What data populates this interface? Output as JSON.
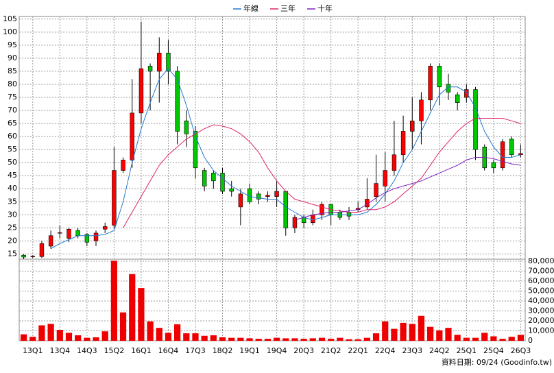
{
  "chart_data": {
    "type": "candlestick",
    "categories": [
      null,
      "13Q1",
      null,
      null,
      "13Q4",
      null,
      null,
      "14Q3",
      null,
      null,
      "15Q2",
      null,
      null,
      "16Q1",
      null,
      null,
      "16Q4",
      null,
      null,
      "17Q3",
      null,
      null,
      "18Q2",
      null,
      null,
      "19Q1",
      null,
      null,
      "19Q4",
      null,
      null,
      "20Q3",
      null,
      null,
      "21Q2",
      null,
      null,
      "22Q1",
      null,
      null,
      "22Q4",
      null,
      null,
      "23Q3",
      null,
      null,
      "24Q2",
      null,
      null,
      "25Q1",
      null,
      null,
      "25Q4",
      null,
      null,
      "26Q3"
    ],
    "open": [
      14.5,
      14,
      14,
      18,
      23,
      21,
      24,
      22.5,
      20,
      24.5,
      26,
      47,
      51,
      69,
      87,
      85,
      92,
      85,
      66,
      62,
      47,
      46,
      46,
      40,
      33,
      40,
      38,
      37,
      37,
      39,
      25,
      29,
      27,
      30,
      34,
      31,
      31,
      32,
      33,
      37,
      41,
      47,
      53,
      62,
      66,
      74,
      87,
      80,
      76,
      75,
      78,
      56,
      50,
      48,
      59,
      53
    ],
    "high": [
      15,
      14.5,
      20,
      24,
      26,
      25,
      25,
      23,
      24,
      27,
      56,
      52,
      82,
      104,
      88,
      98,
      97,
      87,
      70,
      64,
      48,
      47,
      48,
      43,
      40,
      42,
      39,
      39,
      43,
      39,
      30,
      30,
      32,
      35,
      34,
      32,
      33,
      35,
      44,
      53,
      54,
      66,
      68,
      75,
      77,
      88,
      88,
      84,
      77,
      80,
      79,
      57,
      51,
      59,
      60,
      57
    ],
    "low": [
      13,
      13.5,
      13.5,
      17,
      21,
      19.5,
      21,
      18,
      18,
      23,
      25,
      46,
      48,
      65,
      70,
      73,
      80,
      57,
      56,
      44,
      39,
      40,
      38,
      37,
      26,
      34,
      34,
      35,
      33,
      22,
      23,
      25,
      26,
      28,
      26,
      28,
      28,
      31,
      32,
      35,
      35,
      45,
      50,
      55,
      57,
      70,
      72,
      74,
      70,
      73,
      51,
      47,
      46,
      47,
      52,
      52
    ],
    "close": [
      13.8,
      14.2,
      19,
      22,
      23.2,
      24.5,
      22,
      19.5,
      23,
      25.5,
      47,
      51,
      69,
      86,
      85,
      92,
      85,
      62,
      61,
      48,
      41,
      43,
      39,
      39,
      38,
      35,
      36,
      37.5,
      39,
      25,
      29,
      27,
      30,
      34,
      30,
      29,
      29.5,
      32.5,
      36,
      42,
      47,
      53,
      62,
      66,
      74,
      87,
      79,
      77,
      73,
      78,
      55,
      48,
      48,
      58,
      53,
      53.5
    ],
    "up_color": "#ff0000",
    "down_color": "#00c800",
    "volume": [
      6500,
      4000,
      15500,
      17000,
      11000,
      8000,
      5500,
      3000,
      3500,
      9500,
      80500,
      28500,
      67000,
      53000,
      19500,
      13000,
      8000,
      16500,
      7500,
      7500,
      5000,
      5500,
      3500,
      3000,
      3000,
      2500,
      2000,
      2000,
      3000,
      2500,
      2500,
      2000,
      2500,
      3000,
      2000,
      3000,
      1500,
      1500,
      3000,
      7500,
      19500,
      12000,
      18000,
      17000,
      25000,
      14000,
      10500,
      13000,
      6000,
      3000,
      3000,
      8000,
      4500,
      2000,
      4000,
      6000
    ],
    "volume_color": "#ee0000",
    "series": [
      {
        "name": "年線",
        "color": "#1f78d0",
        "values": [
          null,
          null,
          null,
          17,
          19,
          20.5,
          22,
          22,
          22,
          22.5,
          24,
          35,
          50,
          63,
          73,
          82,
          86,
          82,
          72,
          60,
          52,
          47,
          44,
          41,
          39,
          37,
          36.5,
          36,
          36,
          33,
          31,
          29,
          28,
          29,
          30,
          30,
          30,
          30,
          31,
          34,
          38,
          43,
          50,
          55,
          62,
          69,
          76,
          79,
          79,
          77,
          71,
          62,
          56,
          52,
          52,
          53
        ]
      },
      {
        "name": "三年",
        "color": "#e0206a",
        "values": [
          null,
          null,
          null,
          null,
          null,
          null,
          null,
          null,
          null,
          null,
          null,
          25,
          31,
          37,
          43,
          49,
          53,
          56,
          59,
          61,
          63,
          64.5,
          64,
          63,
          61,
          58,
          54,
          48,
          43,
          39,
          36,
          35,
          34,
          33,
          32,
          31.5,
          31,
          31,
          32,
          32,
          33,
          35,
          38,
          41,
          44,
          49,
          54,
          58,
          62,
          65,
          67,
          67,
          67,
          67,
          66,
          65
        ]
      },
      {
        "name": "十年",
        "color": "#7a20c0",
        "values": [
          null,
          null,
          null,
          null,
          null,
          null,
          null,
          null,
          null,
          null,
          null,
          null,
          null,
          null,
          null,
          null,
          null,
          null,
          null,
          null,
          null,
          null,
          null,
          null,
          null,
          null,
          null,
          null,
          null,
          null,
          28,
          29,
          30,
          30.5,
          31,
          31,
          31.5,
          32,
          34,
          36.5,
          38.5,
          40,
          41,
          42,
          43,
          44.5,
          46,
          47.5,
          49,
          51,
          52,
          52,
          51.5,
          50.5,
          49.5,
          49
        ]
      }
    ],
    "ylim": [
      13,
      106
    ],
    "yticks": [
      15,
      20,
      25,
      30,
      35,
      40,
      45,
      50,
      55,
      60,
      65,
      70,
      75,
      80,
      85,
      90,
      95,
      100,
      105
    ],
    "y2lim": [
      0,
      82000
    ],
    "y2ticks": [
      0,
      {
        "value": 10000,
        "label": "10,000"
      },
      {
        "value": 20000,
        "label": "20,000"
      },
      {
        "value": 30000,
        "label": "30,000"
      },
      {
        "value": 40000,
        "label": "40,000"
      },
      {
        "value": 50000,
        "label": "50,000"
      },
      {
        "value": 60000,
        "label": "60,000"
      },
      {
        "value": 70000,
        "label": "70,000"
      },
      {
        "value": 80000,
        "label": "80,000"
      }
    ],
    "grid": true,
    "footer": "資料日期: 09/24  (Goodinfo.tw)"
  }
}
